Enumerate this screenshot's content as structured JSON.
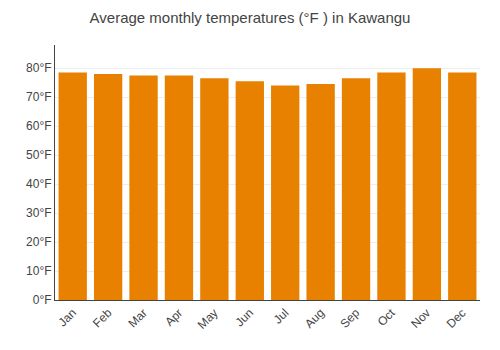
{
  "chart_data": {
    "type": "bar",
    "title": "Average monthly temperatures (°F ) in Kawangu",
    "categories": [
      "Jan",
      "Feb",
      "Mar",
      "Apr",
      "May",
      "Jun",
      "Jul",
      "Aug",
      "Sep",
      "Oct",
      "Nov",
      "Dec"
    ],
    "values": [
      78.5,
      78.0,
      77.5,
      77.5,
      76.5,
      75.5,
      74.0,
      74.5,
      76.5,
      78.5,
      80.0,
      78.5
    ],
    "color": "#E88000",
    "ylim": [
      0,
      88
    ],
    "yticks": [
      {
        "value": 0,
        "label": "0°F"
      },
      {
        "value": 10,
        "label": "10°F"
      },
      {
        "value": 20,
        "label": "20°F"
      },
      {
        "value": 30,
        "label": "30°F"
      },
      {
        "value": 40,
        "label": "40°F"
      },
      {
        "value": 50,
        "label": "50°F"
      },
      {
        "value": 60,
        "label": "60°F"
      },
      {
        "value": 70,
        "label": "70°F"
      },
      {
        "value": 80,
        "label": "80°F"
      }
    ],
    "grid": true
  }
}
